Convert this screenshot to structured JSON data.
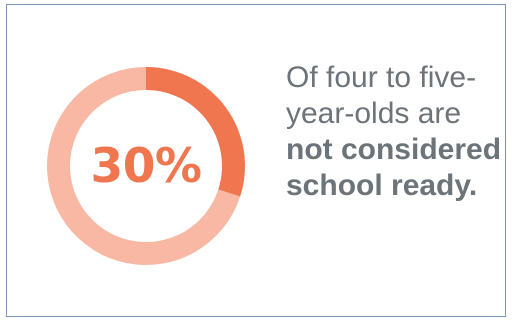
{
  "chart_data": {
    "type": "pie",
    "values": [
      30,
      70
    ],
    "value_label": "30%",
    "colors": {
      "highlight": "#f07650",
      "remainder": "#f9b8a3"
    }
  },
  "statement": {
    "plain": "Of four to five-year-olds are ",
    "bold": "not considered school ready."
  },
  "colors": {
    "text": "#6c7479",
    "border": "#7c95b6"
  }
}
